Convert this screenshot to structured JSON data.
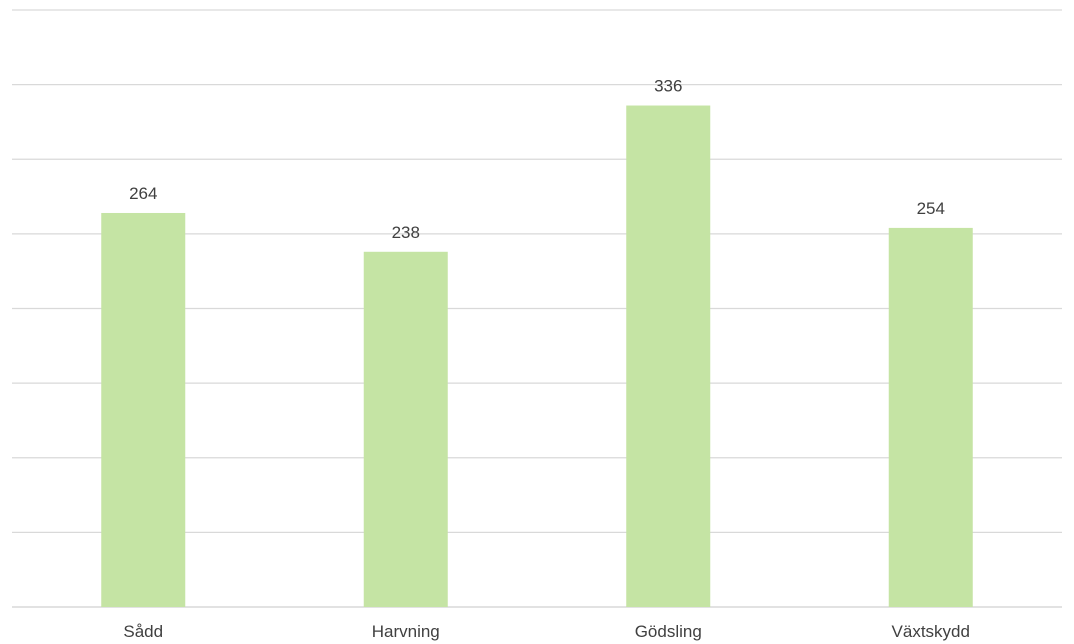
{
  "chart_data": {
    "type": "bar",
    "categories": [
      "Sådd",
      "Harvning",
      "Gödsling",
      "Växtskydd"
    ],
    "values": [
      264,
      238,
      336,
      254
    ],
    "title": "",
    "xlabel": "",
    "ylabel": "",
    "ylim": [
      0,
      400
    ],
    "grid": true,
    "grid_step": 50,
    "bar_color": "#c5e4a4",
    "gridline_color": "#d9d9d9",
    "text_color": "#404040",
    "legend": "none"
  }
}
